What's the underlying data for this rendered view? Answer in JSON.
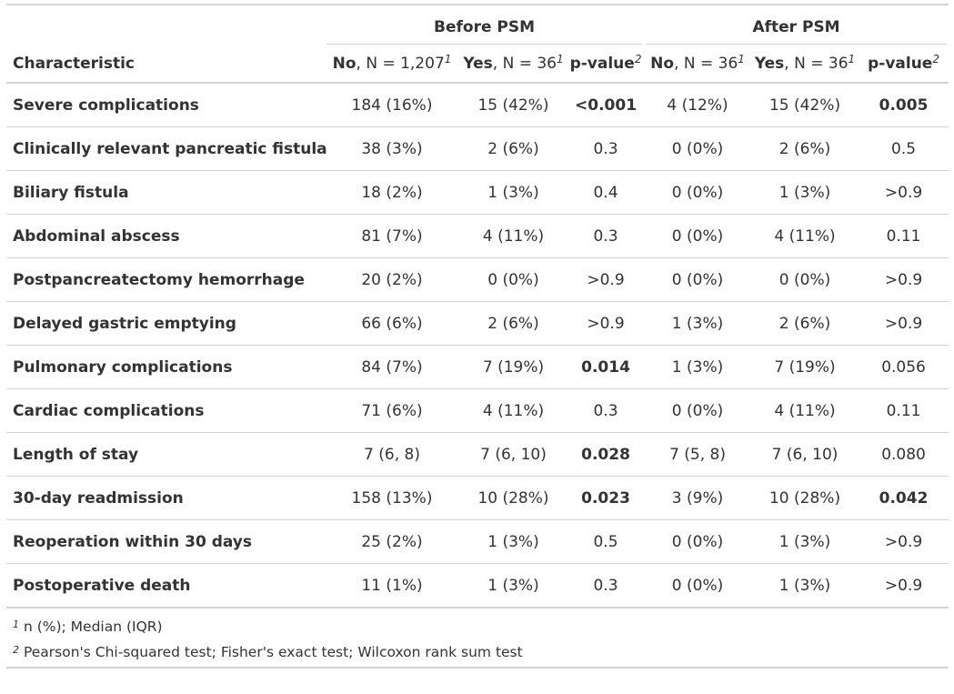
{
  "spanners": {
    "before": "Before PSM",
    "after": "After PSM"
  },
  "headers": {
    "characteristic": "Characteristic",
    "no_before_bold": "No",
    "no_before_rest": ", N = 1,207",
    "yes_before_bold": "Yes",
    "yes_before_rest": ", N = 36",
    "pvalue_before": "p-value",
    "no_after_bold": "No",
    "no_after_rest": ", N = 36",
    "yes_after_bold": "Yes",
    "yes_after_rest": ", N = 36",
    "pvalue_after": "p-value",
    "fn1": "1",
    "fn2": "2"
  },
  "rows": [
    {
      "label": "Severe complications",
      "no_b": "184 (16%)",
      "yes_b": "15 (42%)",
      "p_b": "<0.001",
      "no_a": "4 (12%)",
      "yes_a": "15 (42%)",
      "p_a": "0.005",
      "p_b_bold": true,
      "p_a_bold": true
    },
    {
      "label": "Clinically relevant pancreatic fistula",
      "no_b": "38 (3%)",
      "yes_b": "2 (6%)",
      "p_b": "0.3",
      "no_a": "0 (0%)",
      "yes_a": "2 (6%)",
      "p_a": "0.5",
      "p_b_bold": false,
      "p_a_bold": false
    },
    {
      "label": "Biliary fistula",
      "no_b": "18 (2%)",
      "yes_b": "1 (3%)",
      "p_b": "0.4",
      "no_a": "0 (0%)",
      "yes_a": "1 (3%)",
      "p_a": ">0.9",
      "p_b_bold": false,
      "p_a_bold": false
    },
    {
      "label": "Abdominal abscess",
      "no_b": "81 (7%)",
      "yes_b": "4 (11%)",
      "p_b": "0.3",
      "no_a": "0 (0%)",
      "yes_a": "4 (11%)",
      "p_a": "0.11",
      "p_b_bold": false,
      "p_a_bold": false
    },
    {
      "label": "Postpancreatectomy hemorrhage",
      "no_b": "20 (2%)",
      "yes_b": "0 (0%)",
      "p_b": ">0.9",
      "no_a": "0 (0%)",
      "yes_a": "0 (0%)",
      "p_a": ">0.9",
      "p_b_bold": false,
      "p_a_bold": false
    },
    {
      "label": "Delayed gastric emptying",
      "no_b": "66 (6%)",
      "yes_b": "2 (6%)",
      "p_b": ">0.9",
      "no_a": "1 (3%)",
      "yes_a": "2 (6%)",
      "p_a": ">0.9",
      "p_b_bold": false,
      "p_a_bold": false
    },
    {
      "label": "Pulmonary complications",
      "no_b": "84 (7%)",
      "yes_b": "7 (19%)",
      "p_b": "0.014",
      "no_a": "1 (3%)",
      "yes_a": "7 (19%)",
      "p_a": "0.056",
      "p_b_bold": true,
      "p_a_bold": false
    },
    {
      "label": "Cardiac complications",
      "no_b": "71 (6%)",
      "yes_b": "4 (11%)",
      "p_b": "0.3",
      "no_a": "0 (0%)",
      "yes_a": "4 (11%)",
      "p_a": "0.11",
      "p_b_bold": false,
      "p_a_bold": false
    },
    {
      "label": "Length of stay",
      "no_b": "7 (6, 8)",
      "yes_b": "7 (6, 10)",
      "p_b": "0.028",
      "no_a": "7 (5, 8)",
      "yes_a": "7 (6, 10)",
      "p_a": "0.080",
      "p_b_bold": true,
      "p_a_bold": false
    },
    {
      "label": "30-day readmission",
      "no_b": "158 (13%)",
      "yes_b": "10 (28%)",
      "p_b": "0.023",
      "no_a": "3 (9%)",
      "yes_a": "10 (28%)",
      "p_a": "0.042",
      "p_b_bold": true,
      "p_a_bold": true
    },
    {
      "label": "Reoperation within 30 days",
      "no_b": "25 (2%)",
      "yes_b": "1 (3%)",
      "p_b": "0.5",
      "no_a": "0 (0%)",
      "yes_a": "1 (3%)",
      "p_a": ">0.9",
      "p_b_bold": false,
      "p_a_bold": false
    },
    {
      "label": "Postoperative death",
      "no_b": "11 (1%)",
      "yes_b": "1 (3%)",
      "p_b": "0.3",
      "no_a": "0 (0%)",
      "yes_a": "1 (3%)",
      "p_a": ">0.9",
      "p_b_bold": false,
      "p_a_bold": false
    }
  ],
  "footnotes": [
    {
      "mark": "1",
      "text": "n (%); Median (IQR)"
    },
    {
      "mark": "2",
      "text": "Pearson's Chi-squared test; Fisher's exact test; Wilcoxon rank sum test"
    }
  ]
}
